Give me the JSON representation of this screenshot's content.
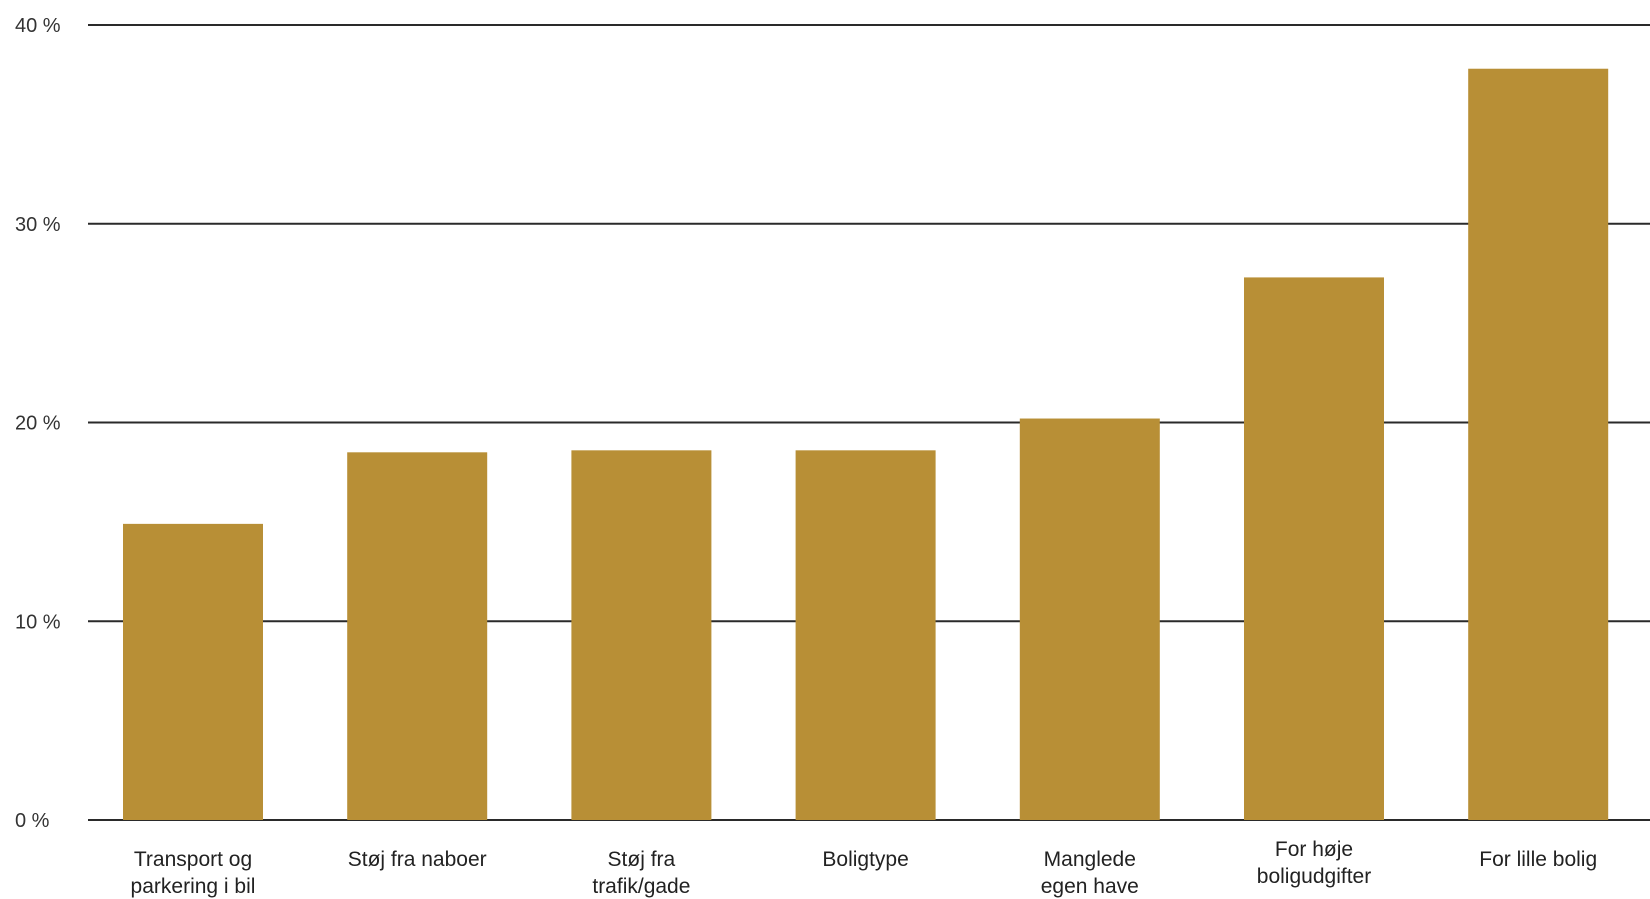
{
  "chart_data": {
    "type": "bar",
    "title": "",
    "xlabel": "",
    "ylabel": "",
    "ylim": [
      0,
      40
    ],
    "yticks": [
      {
        "value": 0,
        "label": "0 %"
      },
      {
        "value": 10,
        "label": "10 %"
      },
      {
        "value": 20,
        "label": "20 %"
      },
      {
        "value": 30,
        "label": "30 %"
      },
      {
        "value": 40,
        "label": "40 %"
      }
    ],
    "categories": [
      [
        "Transport og",
        "parkering i bil"
      ],
      [
        "Støj fra naboer"
      ],
      [
        "Støj fra",
        "trafik/gade"
      ],
      [
        "Boligtype"
      ],
      [
        "Manglede",
        "egen have"
      ],
      [
        "For høje",
        "boligudgifter"
      ],
      [
        "For lille bolig"
      ]
    ],
    "values": [
      14.9,
      18.5,
      18.6,
      18.6,
      20.2,
      27.3,
      37.8
    ],
    "grid": true,
    "legend": "none",
    "bar_color": "#b88f36"
  }
}
